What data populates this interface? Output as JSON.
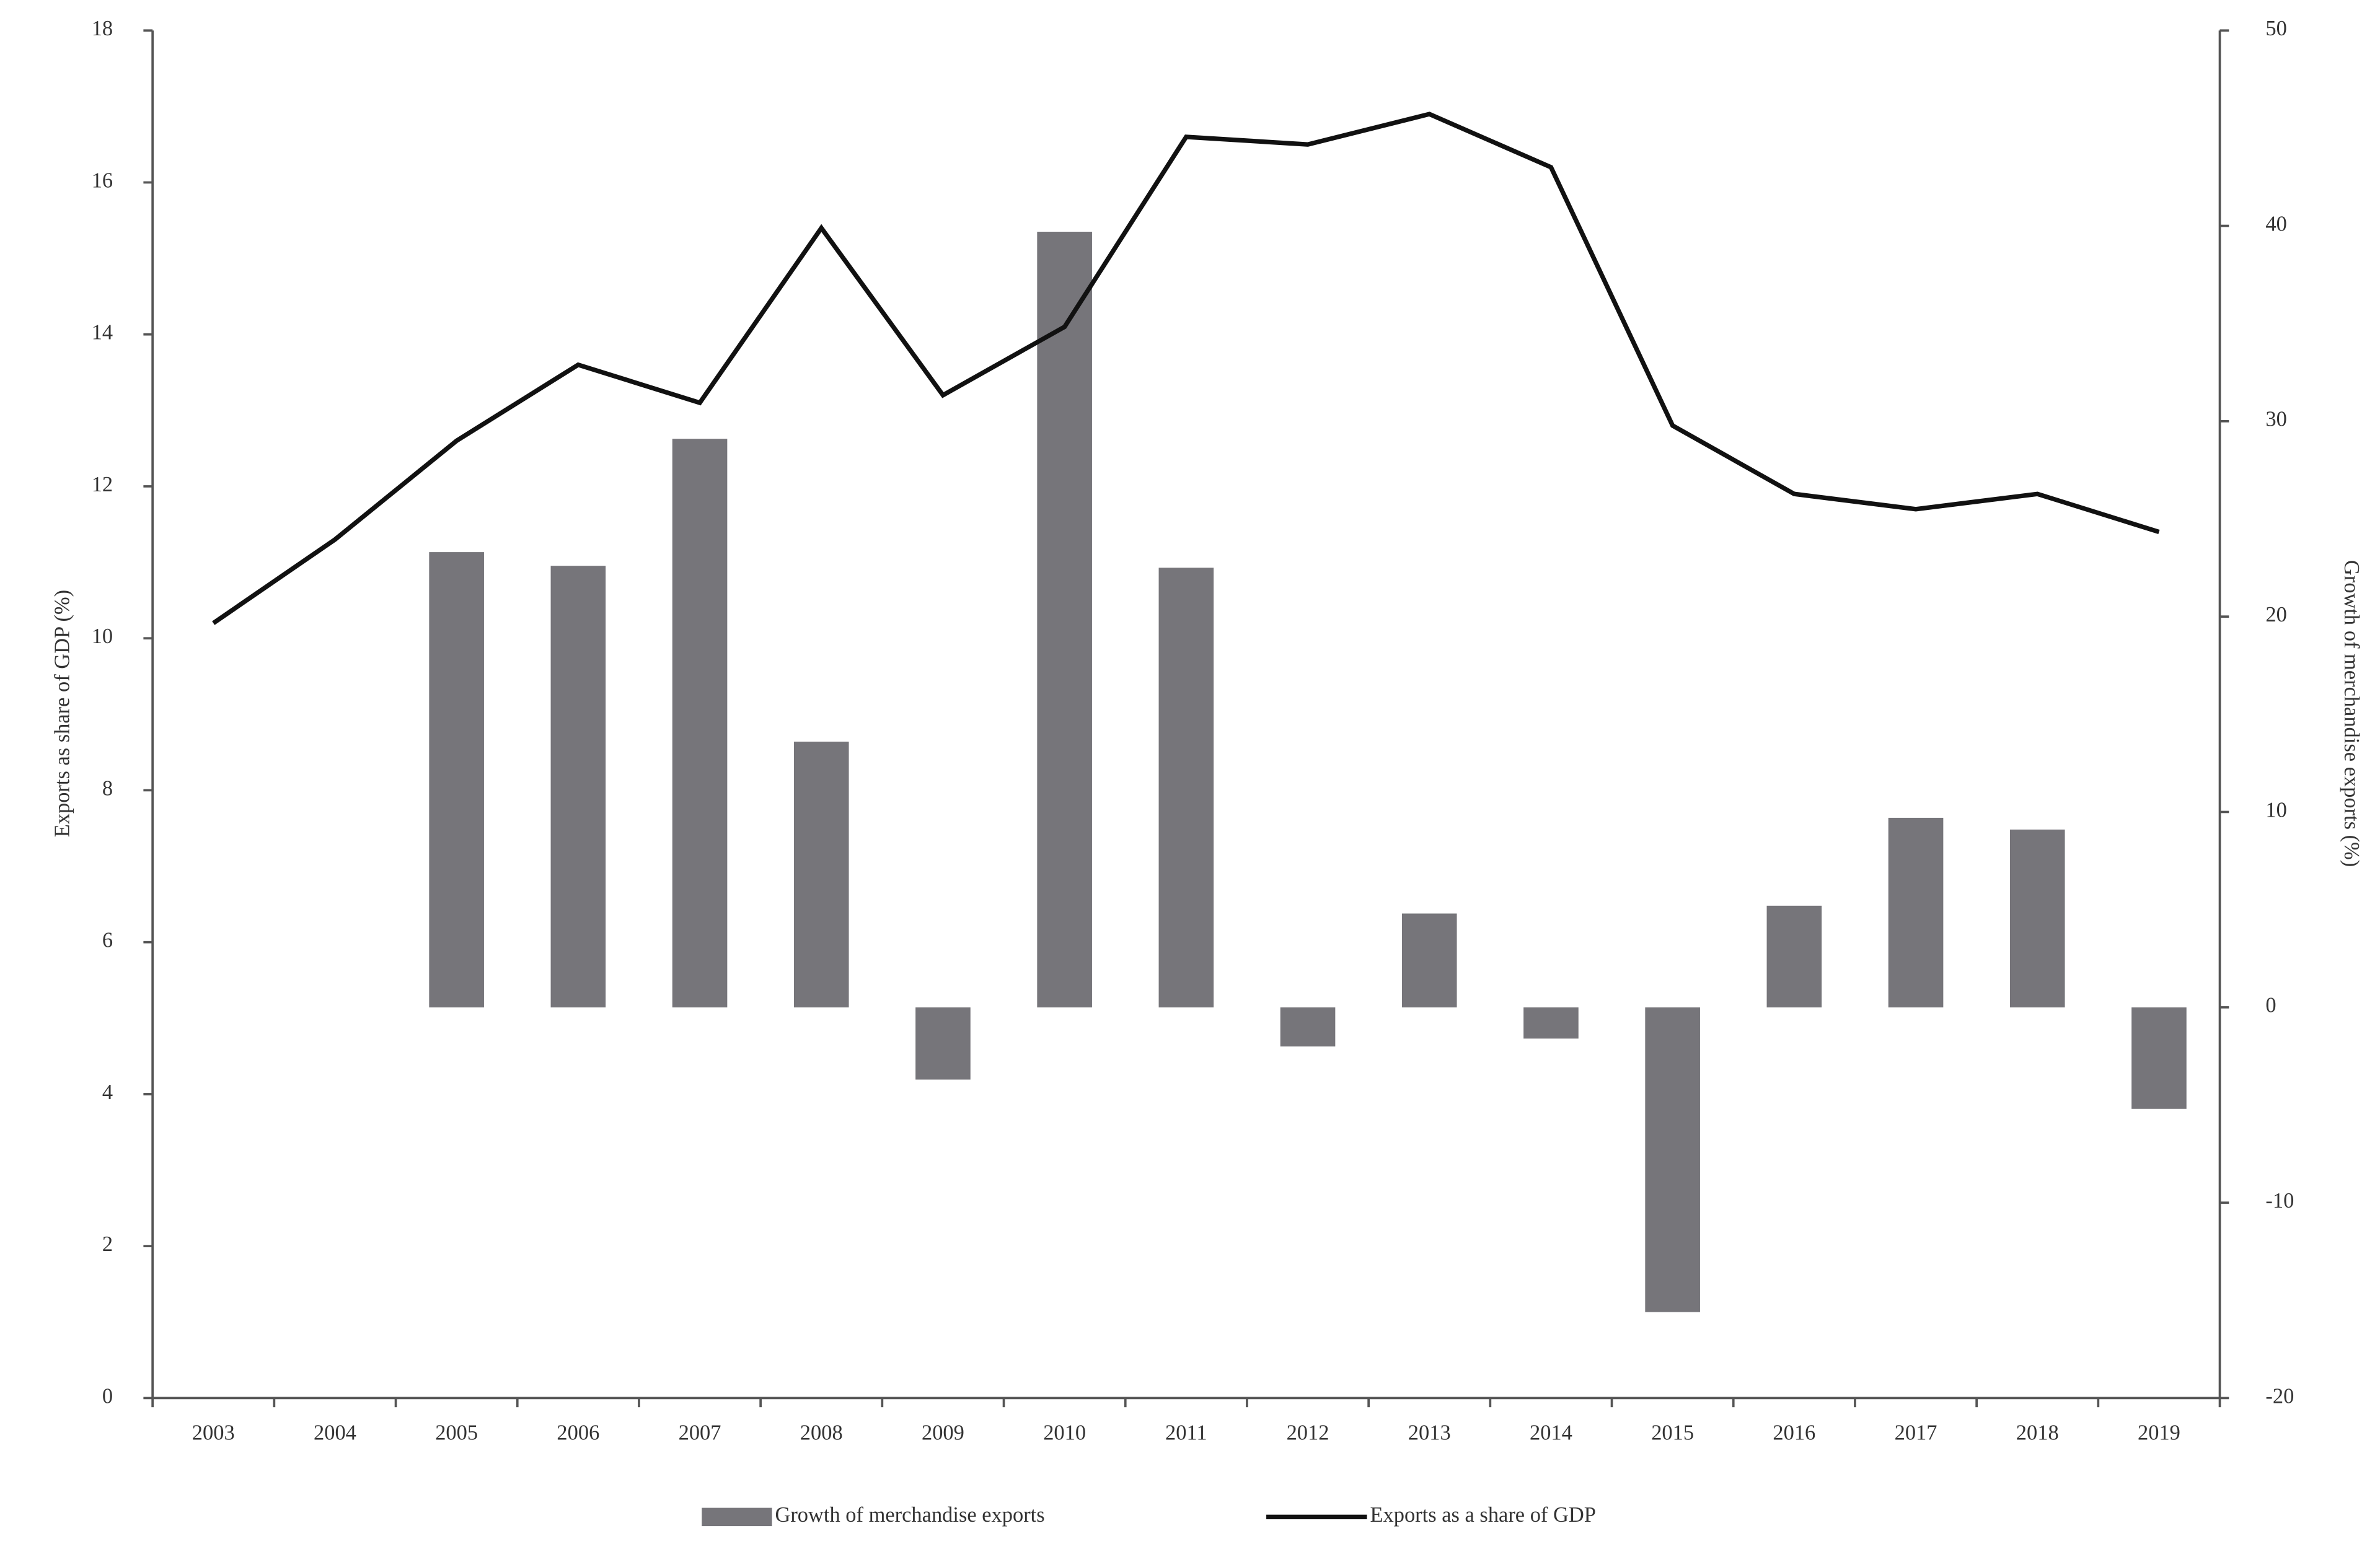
{
  "chart_data": {
    "type": "bar-line",
    "categories": [
      "2003",
      "2004",
      "2005",
      "2006",
      "2007",
      "2008",
      "2009",
      "2010",
      "2011",
      "2012",
      "2013",
      "2014",
      "2015",
      "2016",
      "2017",
      "2018",
      "2019"
    ],
    "ylabel": "Exports as share of GDP (%)",
    "y2label": "Growth of merchandise exports (%)",
    "ylim": [
      0,
      18
    ],
    "yticks": [
      0,
      2,
      4,
      6,
      8,
      10,
      12,
      14,
      16,
      18
    ],
    "y2lim": [
      -20,
      50
    ],
    "y2ticks": [
      -20,
      -10,
      0,
      10,
      20,
      30,
      40,
      50
    ],
    "series": [
      {
        "name": "Growth of merchandise exports",
        "type": "bar",
        "axis": "y2",
        "color": "#76757a",
        "values": [
          null,
          null,
          23.3,
          22.6,
          29.1,
          13.6,
          -3.7,
          39.7,
          22.5,
          -2.0,
          4.8,
          -1.6,
          -15.6,
          5.2,
          9.7,
          9.1,
          -5.2
        ]
      },
      {
        "name": "Exports as a share of GDP",
        "type": "line",
        "axis": "y",
        "color": "#111111",
        "values": [
          10.2,
          11.3,
          12.6,
          13.6,
          13.1,
          15.4,
          13.2,
          14.1,
          16.6,
          16.5,
          16.9,
          16.2,
          12.8,
          11.9,
          11.7,
          11.9,
          11.4
        ]
      }
    ]
  }
}
